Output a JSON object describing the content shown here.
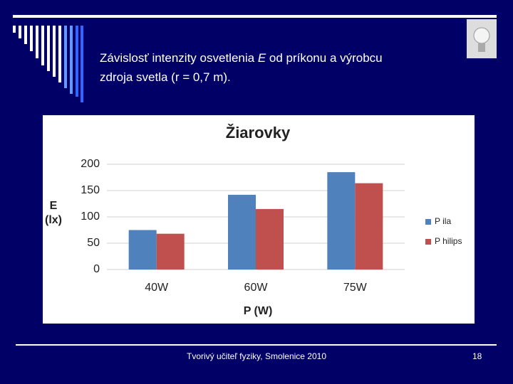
{
  "slide": {
    "title_parts": [
      "Závislosť intenzity osvetlenia ",
      "E",
      " od príkonu a výrobcu zdroja svetla (r = 0,7 m)."
    ],
    "footer": "Tvorivý učiteľ fyziky, Smolenice 2010",
    "page_number": "18"
  },
  "chart_data": {
    "type": "bar",
    "title": "Žiarovky",
    "x_label": "P (W)",
    "y_label": "E (lx)",
    "categories": [
      "40W",
      "60W",
      "75W"
    ],
    "series": [
      {
        "name": "P ila",
        "color": "#4f81bd",
        "values": [
          75,
          142,
          185
        ]
      },
      {
        "name": "P hilips",
        "color": "#c0504d",
        "values": [
          68,
          115,
          164
        ]
      }
    ],
    "ylim": [
      0,
      200
    ],
    "yticks": [
      0,
      50,
      100,
      150,
      200
    ],
    "grid": true,
    "legend": "right"
  }
}
